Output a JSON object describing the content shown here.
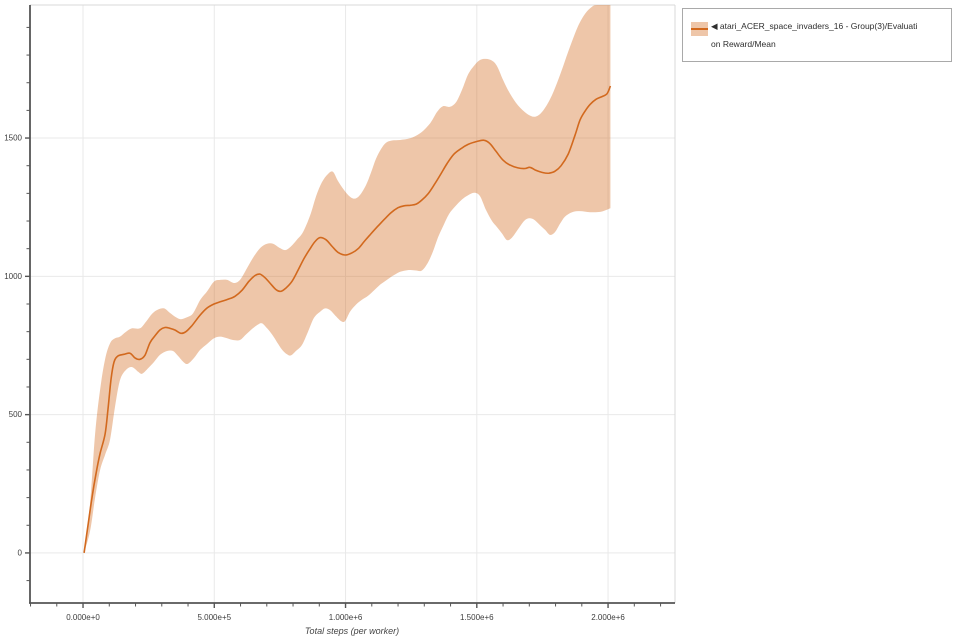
{
  "chart_data": {
    "type": "line",
    "title": "",
    "xlabel": "Total steps (per worker)",
    "ylabel": "",
    "xlim": [
      -202000,
      2255000
    ],
    "ylim": [
      -181,
      1981
    ],
    "grid": "major",
    "legend_position": "top-right",
    "x_ticks": [
      {
        "value": 0,
        "label": "0.000e+0"
      },
      {
        "value": 500000,
        "label": "5.000e+5"
      },
      {
        "value": 1000000,
        "label": "1.000e+6"
      },
      {
        "value": 1500000,
        "label": "1.500e+6"
      },
      {
        "value": 2000000,
        "label": "2.000e+6"
      }
    ],
    "y_ticks": [
      {
        "value": 0,
        "label": "0"
      },
      {
        "value": 500,
        "label": "500"
      },
      {
        "value": 1000,
        "label": "1000"
      },
      {
        "value": 1500,
        "label": "1500"
      }
    ],
    "x_minor_step": 100000,
    "y_minor_step": 100,
    "colors": {
      "line": "#d2691e",
      "band": "rgba(210,105,30,0.38)",
      "axis": "#555555",
      "border": "#d9d9d9",
      "grid": "#e9e9e9",
      "tick_text": "#3d3d3d",
      "title_text": "#444444"
    },
    "series": [
      {
        "name": "atari_ACER_space_invaders_16 - Group(3)/Evaluation Reward/Mean",
        "mean": [
          [
            4000,
            0
          ],
          [
            19000,
            100
          ],
          [
            34000,
            200
          ],
          [
            50000,
            290
          ],
          [
            65000,
            360
          ],
          [
            84000,
            430
          ],
          [
            95000,
            520
          ],
          [
            107000,
            630
          ],
          [
            118000,
            690
          ],
          [
            133000,
            712
          ],
          [
            156000,
            718
          ],
          [
            179000,
            722
          ],
          [
            198000,
            705
          ],
          [
            217000,
            700
          ],
          [
            236000,
            715
          ],
          [
            255000,
            760
          ],
          [
            274000,
            785
          ],
          [
            293000,
            806
          ],
          [
            312000,
            815
          ],
          [
            331000,
            812
          ],
          [
            350000,
            806
          ],
          [
            373000,
            794
          ],
          [
            392000,
            800
          ],
          [
            415000,
            822
          ],
          [
            446000,
            860
          ],
          [
            472000,
            885
          ],
          [
            499000,
            900
          ],
          [
            526000,
            909
          ],
          [
            552000,
            917
          ],
          [
            579000,
            928
          ],
          [
            606000,
            950
          ],
          [
            632000,
            982
          ],
          [
            655000,
            1003
          ],
          [
            674000,
            1008
          ],
          [
            693000,
            995
          ],
          [
            712000,
            976
          ],
          [
            735000,
            952
          ],
          [
            754000,
            946
          ],
          [
            773000,
            958
          ],
          [
            796000,
            982
          ],
          [
            819000,
            1022
          ],
          [
            842000,
            1065
          ],
          [
            865000,
            1100
          ],
          [
            884000,
            1126
          ],
          [
            903000,
            1140
          ],
          [
            926000,
            1132
          ],
          [
            949000,
            1108
          ],
          [
            971000,
            1087
          ],
          [
            998000,
            1077
          ],
          [
            1025000,
            1085
          ],
          [
            1048000,
            1100
          ],
          [
            1071000,
            1126
          ],
          [
            1093000,
            1150
          ],
          [
            1120000,
            1178
          ],
          [
            1147000,
            1205
          ],
          [
            1173000,
            1230
          ],
          [
            1200000,
            1248
          ],
          [
            1223000,
            1255
          ],
          [
            1246000,
            1257
          ],
          [
            1269000,
            1261
          ],
          [
            1291000,
            1276
          ],
          [
            1314000,
            1298
          ],
          [
            1337000,
            1330
          ],
          [
            1360000,
            1365
          ],
          [
            1387000,
            1408
          ],
          [
            1413000,
            1442
          ],
          [
            1440000,
            1462
          ],
          [
            1467000,
            1477
          ],
          [
            1501000,
            1488
          ],
          [
            1528000,
            1492
          ],
          [
            1550000,
            1480
          ],
          [
            1573000,
            1452
          ],
          [
            1600000,
            1420
          ],
          [
            1627000,
            1402
          ],
          [
            1657000,
            1392
          ],
          [
            1684000,
            1390
          ],
          [
            1703000,
            1394
          ],
          [
            1726000,
            1383
          ],
          [
            1752000,
            1375
          ],
          [
            1775000,
            1373
          ],
          [
            1798000,
            1380
          ],
          [
            1821000,
            1400
          ],
          [
            1848000,
            1442
          ],
          [
            1874000,
            1510
          ],
          [
            1893000,
            1565
          ],
          [
            1913000,
            1598
          ],
          [
            1932000,
            1622
          ],
          [
            1954000,
            1640
          ],
          [
            1977000,
            1650
          ],
          [
            1996000,
            1660
          ],
          [
            2009000,
            1688
          ]
        ],
        "band_upper": [
          [
            4000,
            0
          ],
          [
            27000,
            180
          ],
          [
            46000,
            430
          ],
          [
            65000,
            590
          ],
          [
            84000,
            700
          ],
          [
            103000,
            758
          ],
          [
            122000,
            776
          ],
          [
            141000,
            782
          ],
          [
            164000,
            800
          ],
          [
            187000,
            812
          ],
          [
            217000,
            812
          ],
          [
            240000,
            836
          ],
          [
            263000,
            865
          ],
          [
            286000,
            880
          ],
          [
            309000,
            884
          ],
          [
            331000,
            868
          ],
          [
            354000,
            852
          ],
          [
            373000,
            845
          ],
          [
            396000,
            852
          ],
          [
            419000,
            866
          ],
          [
            446000,
            914
          ],
          [
            472000,
            945
          ],
          [
            499000,
            981
          ],
          [
            522000,
            987
          ],
          [
            549000,
            987
          ],
          [
            575000,
            976
          ],
          [
            598000,
            987
          ],
          [
            625000,
            1030
          ],
          [
            651000,
            1072
          ],
          [
            678000,
            1105
          ],
          [
            701000,
            1118
          ],
          [
            724000,
            1118
          ],
          [
            747000,
            1104
          ],
          [
            770000,
            1095
          ],
          [
            792000,
            1108
          ],
          [
            815000,
            1133
          ],
          [
            838000,
            1160
          ],
          [
            865000,
            1220
          ],
          [
            888000,
            1290
          ],
          [
            910000,
            1340
          ],
          [
            933000,
            1370
          ],
          [
            952000,
            1378
          ],
          [
            971000,
            1345
          ],
          [
            994000,
            1312
          ],
          [
            1017000,
            1288
          ],
          [
            1036000,
            1281
          ],
          [
            1055000,
            1294
          ],
          [
            1078000,
            1330
          ],
          [
            1097000,
            1375
          ],
          [
            1116000,
            1425
          ],
          [
            1135000,
            1460
          ],
          [
            1154000,
            1483
          ],
          [
            1177000,
            1491
          ],
          [
            1208000,
            1493
          ],
          [
            1246000,
            1499
          ],
          [
            1284000,
            1517
          ],
          [
            1322000,
            1553
          ],
          [
            1349000,
            1595
          ],
          [
            1371000,
            1615
          ],
          [
            1398000,
            1613
          ],
          [
            1421000,
            1630
          ],
          [
            1444000,
            1675
          ],
          [
            1467000,
            1730
          ],
          [
            1490000,
            1762
          ],
          [
            1512000,
            1782
          ],
          [
            1535000,
            1786
          ],
          [
            1558000,
            1780
          ],
          [
            1577000,
            1760
          ],
          [
            1600000,
            1710
          ],
          [
            1627000,
            1660
          ],
          [
            1657000,
            1618
          ],
          [
            1691000,
            1588
          ],
          [
            1722000,
            1577
          ],
          [
            1749000,
            1595
          ],
          [
            1779000,
            1640
          ],
          [
            1806000,
            1700
          ],
          [
            1829000,
            1760
          ],
          [
            1855000,
            1830
          ],
          [
            1886000,
            1905
          ],
          [
            1913000,
            1950
          ],
          [
            1939000,
            1975
          ],
          [
            1958000,
            1981
          ],
          [
            2009000,
            1981
          ]
        ],
        "band_lower": [
          [
            4000,
            0
          ],
          [
            27000,
            80
          ],
          [
            46000,
            200
          ],
          [
            65000,
            300
          ],
          [
            84000,
            355
          ],
          [
            103000,
            410
          ],
          [
            122000,
            530
          ],
          [
            141000,
            625
          ],
          [
            164000,
            662
          ],
          [
            187000,
            672
          ],
          [
            210000,
            655
          ],
          [
            225000,
            648
          ],
          [
            248000,
            668
          ],
          [
            270000,
            690
          ],
          [
            293000,
            716
          ],
          [
            320000,
            730
          ],
          [
            343000,
            730
          ],
          [
            362000,
            712
          ],
          [
            385000,
            688
          ],
          [
            400000,
            684
          ],
          [
            423000,
            705
          ],
          [
            446000,
            734
          ],
          [
            472000,
            755
          ],
          [
            499000,
            776
          ],
          [
            522000,
            782
          ],
          [
            549000,
            776
          ],
          [
            571000,
            770
          ],
          [
            598000,
            770
          ],
          [
            621000,
            790
          ],
          [
            644000,
            810
          ],
          [
            667000,
            826
          ],
          [
            682000,
            830
          ],
          [
            701000,
            812
          ],
          [
            720000,
            790
          ],
          [
            739000,
            762
          ],
          [
            758000,
            735
          ],
          [
            777000,
            718
          ],
          [
            792000,
            714
          ],
          [
            811000,
            730
          ],
          [
            834000,
            752
          ],
          [
            857000,
            800
          ],
          [
            880000,
            850
          ],
          [
            903000,
            872
          ],
          [
            922000,
            884
          ],
          [
            941000,
            878
          ],
          [
            964000,
            855
          ],
          [
            983000,
            838
          ],
          [
            998000,
            838
          ],
          [
            1017000,
            872
          ],
          [
            1040000,
            898
          ],
          [
            1063000,
            916
          ],
          [
            1086000,
            930
          ],
          [
            1109000,
            950
          ],
          [
            1131000,
            969
          ],
          [
            1154000,
            985
          ],
          [
            1177000,
            1000
          ],
          [
            1200000,
            1013
          ],
          [
            1223000,
            1020
          ],
          [
            1246000,
            1023
          ],
          [
            1269000,
            1021
          ],
          [
            1291000,
            1021
          ],
          [
            1314000,
            1050
          ],
          [
            1333000,
            1090
          ],
          [
            1352000,
            1140
          ],
          [
            1371000,
            1180
          ],
          [
            1394000,
            1225
          ],
          [
            1417000,
            1252
          ],
          [
            1444000,
            1278
          ],
          [
            1467000,
            1293
          ],
          [
            1490000,
            1302
          ],
          [
            1512000,
            1290
          ],
          [
            1535000,
            1240
          ],
          [
            1558000,
            1200
          ],
          [
            1577000,
            1178
          ],
          [
            1596000,
            1155
          ],
          [
            1615000,
            1131
          ],
          [
            1634000,
            1140
          ],
          [
            1657000,
            1170
          ],
          [
            1680000,
            1200
          ],
          [
            1699000,
            1210
          ],
          [
            1718000,
            1205
          ],
          [
            1741000,
            1185
          ],
          [
            1760000,
            1168
          ],
          [
            1779000,
            1150
          ],
          [
            1798000,
            1160
          ],
          [
            1817000,
            1190
          ],
          [
            1836000,
            1216
          ],
          [
            1863000,
            1232
          ],
          [
            1893000,
            1236
          ],
          [
            1932000,
            1232
          ],
          [
            1970000,
            1233
          ],
          [
            1993000,
            1240
          ],
          [
            2009000,
            1246
          ]
        ]
      }
    ]
  },
  "legend": {
    "lines": [
      "◀ atari_ACER_space_invaders_16 - Group(3)/Evaluati",
      "on Reward/Mean"
    ]
  }
}
